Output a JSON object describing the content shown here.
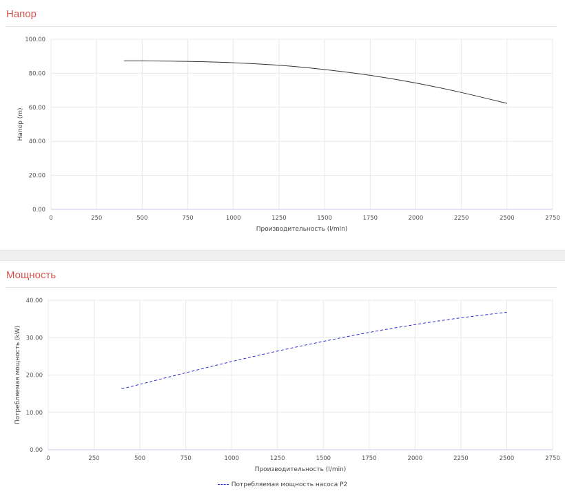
{
  "panels": [
    {
      "title": "Напор",
      "chart_data": {
        "type": "line",
        "xlabel": "Производительность (l/min)",
        "ylabel": "Напор (m)",
        "xlim": [
          0,
          2750
        ],
        "ylim": [
          0,
          100
        ],
        "x_ticks": [
          "0",
          "250",
          "500",
          "750",
          "1000",
          "1250",
          "1500",
          "1750",
          "2000",
          "2250",
          "2500",
          "2750"
        ],
        "y_ticks": [
          "0.00",
          "20.00",
          "40.00",
          "60.00",
          "80.00",
          "100.00"
        ],
        "grid": true,
        "line_color": "#333333",
        "dashed": false,
        "series": [
          {
            "x": [
              400,
              500,
              750,
              1000,
              1250,
              1500,
              1750,
              2000,
              2250,
              2500
            ],
            "y": [
              87.3,
              87.3,
              87.0,
              86.2,
              84.7,
              82.2,
              78.8,
              74.3,
              68.7,
              62.3
            ]
          }
        ]
      }
    },
    {
      "title": "Мощность",
      "chart_data": {
        "type": "line",
        "xlabel": "Производительность (l/min)",
        "ylabel": "Потребляемая мощность (kW)",
        "xlim": [
          0,
          2750
        ],
        "ylim": [
          0,
          40
        ],
        "x_ticks": [
          "0",
          "250",
          "500",
          "750",
          "1000",
          "1250",
          "1500",
          "1750",
          "2000",
          "2250",
          "2500",
          "2750"
        ],
        "y_ticks": [
          "0.00",
          "10.00",
          "20.00",
          "30.00",
          "40.00"
        ],
        "grid": true,
        "line_color": "#2a2ad8",
        "dashed": true,
        "legend_position": "bottom",
        "series": [
          {
            "name": "Потребляемая мощность насоса P2",
            "x": [
              400,
              500,
              750,
              1000,
              1250,
              1500,
              1750,
              2000,
              2250,
              2500
            ],
            "y": [
              16.3,
              17.5,
              20.6,
              23.6,
              26.4,
              29.0,
              31.4,
              33.5,
              35.3,
              36.8
            ]
          }
        ]
      }
    }
  ]
}
